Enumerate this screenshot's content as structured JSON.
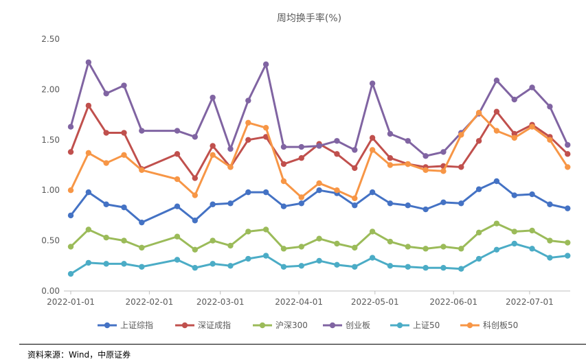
{
  "chart_data": {
    "type": "line",
    "title": "周均换手率(%)",
    "ylim": [
      0,
      2.5
    ],
    "y_ticks": [
      "0.00",
      "0.50",
      "1.00",
      "1.50",
      "2.00",
      "2.50"
    ],
    "x_tick_labels": [
      "2022-01-01",
      "2022-02-01",
      "2022-03-01",
      "2022-04-01",
      "2022-05-01",
      "2022-06-01",
      "2022-07-01"
    ],
    "x_ticks_day_index": [
      0,
      31,
      59,
      90,
      120,
      151,
      181
    ],
    "x_day_index": [
      0,
      7,
      14,
      21,
      28,
      42,
      49,
      56,
      63,
      70,
      77,
      84,
      91,
      98,
      105,
      112,
      119,
      126,
      133,
      140,
      147,
      154,
      161,
      168,
      175,
      182,
      189,
      196
    ],
    "grid": false,
    "legend_position": "bottom",
    "series": [
      {
        "name": "上证综指",
        "color": "#4472C4",
        "values": [
          0.75,
          0.98,
          0.86,
          0.83,
          0.68,
          0.84,
          0.7,
          0.86,
          0.87,
          0.98,
          0.98,
          0.84,
          0.87,
          1.0,
          0.97,
          0.85,
          0.98,
          0.87,
          0.85,
          0.81,
          0.88,
          0.87,
          1.01,
          1.09,
          0.95,
          0.96,
          0.86,
          0.82
        ]
      },
      {
        "name": "深证成指",
        "color": "#C0504D",
        "values": [
          1.38,
          1.84,
          1.57,
          1.57,
          1.21,
          1.36,
          1.12,
          1.44,
          1.23,
          1.5,
          1.53,
          1.26,
          1.32,
          1.46,
          1.36,
          1.22,
          1.52,
          1.32,
          1.26,
          1.23,
          1.24,
          1.23,
          1.49,
          1.78,
          1.56,
          1.65,
          1.53,
          1.36
        ]
      },
      {
        "name": "沪深300",
        "color": "#9BBB59",
        "values": [
          0.44,
          0.61,
          0.53,
          0.5,
          0.43,
          0.54,
          0.41,
          0.5,
          0.45,
          0.59,
          0.61,
          0.42,
          0.44,
          0.52,
          0.47,
          0.43,
          0.59,
          0.49,
          0.44,
          0.42,
          0.44,
          0.42,
          0.58,
          0.67,
          0.59,
          0.6,
          0.5,
          0.48
        ]
      },
      {
        "name": "创业板",
        "color": "#8064A2",
        "values": [
          1.63,
          2.27,
          1.96,
          2.04,
          1.59,
          1.59,
          1.53,
          1.92,
          1.41,
          1.89,
          2.25,
          1.43,
          1.43,
          1.44,
          1.49,
          1.4,
          2.06,
          1.56,
          1.49,
          1.34,
          1.38,
          1.57,
          1.76,
          2.09,
          1.9,
          2.02,
          1.83,
          1.45
        ]
      },
      {
        "name": "上证50",
        "color": "#4BACC6",
        "values": [
          0.17,
          0.28,
          0.27,
          0.27,
          0.24,
          0.31,
          0.23,
          0.27,
          0.25,
          0.32,
          0.35,
          0.24,
          0.25,
          0.3,
          0.26,
          0.24,
          0.33,
          0.25,
          0.24,
          0.23,
          0.23,
          0.22,
          0.32,
          0.41,
          0.47,
          0.42,
          0.33,
          0.35
        ]
      },
      {
        "name": "科创板50",
        "color": "#F79646",
        "values": [
          1.0,
          1.37,
          1.27,
          1.35,
          1.2,
          1.11,
          0.95,
          1.35,
          1.23,
          1.67,
          1.62,
          1.09,
          0.93,
          1.07,
          1.0,
          0.92,
          1.4,
          1.25,
          1.26,
          1.2,
          1.19,
          1.55,
          1.77,
          1.59,
          1.52,
          1.63,
          1.5,
          1.23
        ]
      }
    ]
  },
  "footer": {
    "source_text": "资料来源：Wind，中原证券"
  }
}
